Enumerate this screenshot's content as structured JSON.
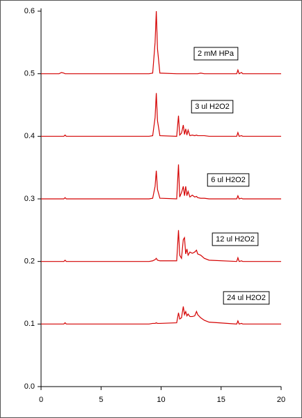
{
  "chart_data": {
    "type": "line",
    "x": [
      0,
      1.5,
      1.7,
      1.9,
      2.0,
      2.1,
      2.3,
      9.0,
      9.3,
      9.5,
      9.6,
      9.7,
      9.9,
      11.3,
      11.45,
      11.55,
      11.7,
      11.85,
      11.95,
      12.05,
      12.15,
      12.25,
      12.4,
      12.6,
      12.8,
      12.95,
      13.05,
      13.3,
      13.6,
      14.0,
      16.3,
      16.4,
      16.5,
      16.7,
      16.8,
      17,
      20
    ],
    "series": [
      {
        "name": "2 mM HPa",
        "color": "#d40000",
        "values": [
          0.5,
          0.5,
          0.502,
          0.501,
          0.5,
          0.5,
          0.5,
          0.5,
          0.501,
          0.55,
          0.6,
          0.54,
          0.501,
          0.5,
          0.5,
          0.5,
          0.5,
          0.5,
          0.5,
          0.5,
          0.5,
          0.5,
          0.5,
          0.5,
          0.5,
          0.5,
          0.5,
          0.501,
          0.5,
          0.5,
          0.5,
          0.506,
          0.5,
          0.502,
          0.5,
          0.5,
          0.5
        ]
      },
      {
        "name": "3 ul H2O2",
        "color": "#d40000",
        "values": [
          0.4,
          0.4,
          0.4,
          0.4,
          0.402,
          0.4,
          0.4,
          0.4,
          0.401,
          0.43,
          0.469,
          0.425,
          0.401,
          0.4,
          0.433,
          0.402,
          0.405,
          0.418,
          0.403,
          0.412,
          0.402,
          0.41,
          0.401,
          0.402,
          0.401,
          0.402,
          0.401,
          0.401,
          0.401,
          0.4,
          0.4,
          0.406,
          0.4,
          0.401,
          0.4,
          0.4,
          0.4
        ]
      },
      {
        "name": "6 ul H2O2",
        "color": "#d40000",
        "values": [
          0.3,
          0.3,
          0.3,
          0.3,
          0.302,
          0.3,
          0.3,
          0.3,
          0.301,
          0.32,
          0.345,
          0.315,
          0.301,
          0.3,
          0.355,
          0.303,
          0.31,
          0.32,
          0.305,
          0.32,
          0.305,
          0.312,
          0.303,
          0.306,
          0.303,
          0.304,
          0.302,
          0.301,
          0.301,
          0.3,
          0.3,
          0.305,
          0.3,
          0.301,
          0.3,
          0.3,
          0.3
        ]
      },
      {
        "name": "12 ul H2O2",
        "color": "#d40000",
        "values": [
          0.2,
          0.2,
          0.2,
          0.2,
          0.202,
          0.2,
          0.2,
          0.2,
          0.201,
          0.203,
          0.205,
          0.202,
          0.201,
          0.201,
          0.25,
          0.21,
          0.205,
          0.235,
          0.238,
          0.212,
          0.22,
          0.21,
          0.215,
          0.213,
          0.215,
          0.218,
          0.212,
          0.21,
          0.205,
          0.202,
          0.2,
          0.206,
          0.2,
          0.201,
          0.2,
          0.2,
          0.2
        ]
      },
      {
        "name": "24 ul H2O2",
        "color": "#d40000",
        "values": [
          0.1,
          0.1,
          0.1,
          0.1,
          0.102,
          0.1,
          0.1,
          0.1,
          0.101,
          0.101,
          0.102,
          0.101,
          0.101,
          0.102,
          0.118,
          0.108,
          0.11,
          0.128,
          0.115,
          0.12,
          0.113,
          0.116,
          0.112,
          0.112,
          0.113,
          0.12,
          0.115,
          0.11,
          0.106,
          0.103,
          0.1,
          0.105,
          0.1,
          0.101,
          0.1,
          0.1,
          0.1
        ]
      }
    ],
    "xlim": [
      0,
      20
    ],
    "xticks": [
      0,
      5,
      10,
      15,
      20
    ],
    "ylim": [
      0,
      0.6
    ],
    "yticks": [
      {
        "value": 0,
        "label": "0.0"
      },
      0.1,
      0.2,
      0.3,
      0.4,
      0.5,
      0.6
    ],
    "grid": false
  }
}
